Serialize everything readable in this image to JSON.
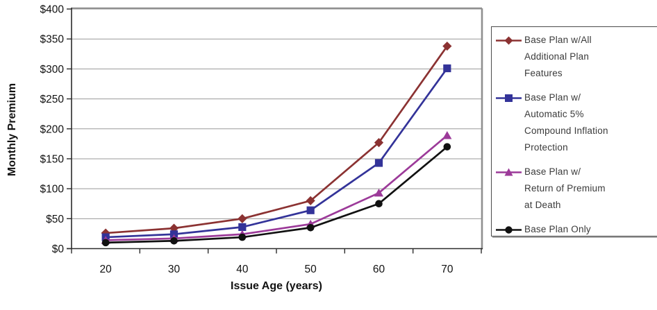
{
  "chart_data": {
    "type": "line",
    "title": "",
    "xlabel": "Issue Age (years)",
    "ylabel": "Monthly Premium",
    "x": [
      20,
      30,
      40,
      50,
      60,
      70
    ],
    "ylim": [
      0,
      400
    ],
    "y_step": 50,
    "y_tick_labels": [
      "$0",
      "$50",
      "$100",
      "$150",
      "$200",
      "$250",
      "$300",
      "$350",
      "$400"
    ],
    "grid": true,
    "legend_position": "right",
    "series": [
      {
        "name": "Base Plan w/All Additional Plan Features",
        "marker": "diamond",
        "color": "#8B3232",
        "values": [
          26,
          34,
          50,
          80,
          177,
          338
        ]
      },
      {
        "name": "Base Plan w/ Automatic 5% Compound Inflation Protection",
        "marker": "square",
        "color": "#333399",
        "values": [
          19,
          24,
          36,
          64,
          143,
          301
        ]
      },
      {
        "name": "Base Plan w/ Return of Premium at Death",
        "marker": "triangle",
        "color": "#9C3A99",
        "values": [
          14,
          17,
          24,
          41,
          93,
          189
        ]
      },
      {
        "name": "Base Plan Only",
        "marker": "circle",
        "color": "#111111",
        "values": [
          10,
          13,
          19,
          35,
          75,
          170
        ]
      }
    ]
  },
  "legend": {
    "items": [
      {
        "lines": [
          "Base Plan w/All",
          "Additional Plan",
          "Features"
        ],
        "marker": "diamond",
        "color": "#8B3232"
      },
      {
        "lines": [
          "Base Plan w/",
          "Automatic 5%",
          "Compound Inflation",
          "Protection"
        ],
        "marker": "square",
        "color": "#333399"
      },
      {
        "lines": [
          "Base Plan w/",
          "Return of Premium",
          "at Death"
        ],
        "marker": "triangle",
        "color": "#9C3A99"
      },
      {
        "lines": [
          "Base Plan Only"
        ],
        "marker": "circle",
        "color": "#111111"
      }
    ]
  },
  "colors": {
    "gridline": "#999999",
    "plot_border": "#8F8F8F",
    "axis": "#2b2b2b",
    "tick_label": "#111111"
  }
}
